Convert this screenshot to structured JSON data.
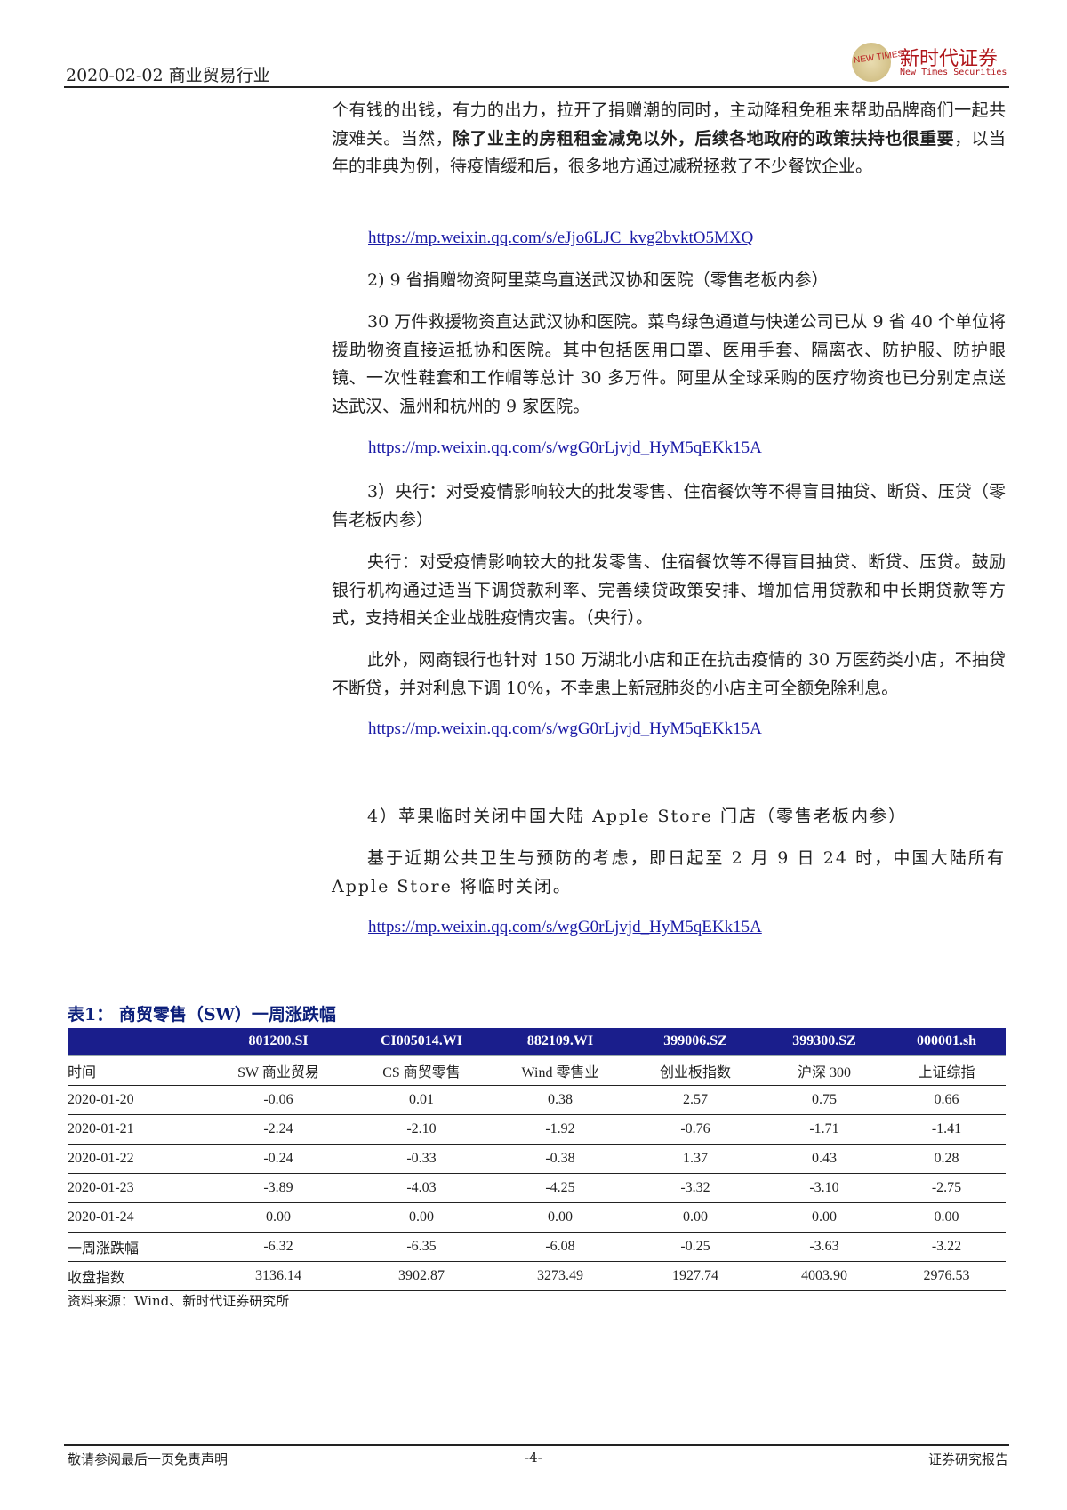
{
  "header": {
    "date_industry": "2020-02-02 商业贸易行业",
    "logo_mark": "NEW TIMES",
    "logo_cn": "新时代证券",
    "logo_en": "New Times Securities"
  },
  "body": {
    "p1_a": "个有钱的出钱，有力的出力，拉开了捐赠潮的同时，主动降租免租来帮助品牌商们一起共渡难关。当然，",
    "p1_bold": "除了业主的房租租金减免以外，后续各地政府的政策扶持也很重要",
    "p1_c": "，以当年的非典为例，待疫情缓和后，很多地方通过减税拯救了不少餐饮企业。",
    "link1": "https://mp.weixin.qq.com/s/eJjo6LJC_kvg2bvktO5MXQ",
    "h2": "2) 9 省捐赠物资阿里菜鸟直送武汉协和医院（零售老板内参）",
    "p2": "30 万件救援物资直达武汉协和医院。菜鸟绿色通道与快递公司已从 9 省 40 个单位将援助物资直接运抵协和医院。其中包括医用口罩、医用手套、隔离衣、防护服、防护眼镜、一次性鞋套和工作帽等总计 30 多万件。阿里从全球采购的医疗物资也已分别定点送达武汉、温州和杭州的 9 家医院。",
    "link2": "https://mp.weixin.qq.com/s/wgG0rLjvjd_HyM5qEKk15A",
    "h3": "3）央行：对受疫情影响较大的批发零售、住宿餐饮等不得盲目抽贷、断贷、压贷（零售老板内参）",
    "p3": "央行：对受疫情影响较大的批发零售、住宿餐饮等不得盲目抽贷、断贷、压贷。鼓励银行机构通过适当下调贷款利率、完善续贷政策安排、增加信用贷款和中长期贷款等方式，支持相关企业战胜疫情灾害。（央行）。",
    "p4": "此外，网商银行也针对 150 万湖北小店和正在抗击疫情的 30 万医药类小店，不抽贷不断贷，并对利息下调 10%，不幸患上新冠肺炎的小店主可全额免除利息。",
    "link3": "https://mp.weixin.qq.com/s/wgG0rLjvjd_HyM5qEKk15A",
    "h4": "4）苹果临时关闭中国大陆 Apple Store 门店（零售老板内参）",
    "p5": "基于近期公共卫生与预防的考虑，即日起至 2 月 9 日 24 时，中国大陆所有 Apple Store 将临时关闭。",
    "link4": "https://mp.weixin.qq.com/s/wgG0rLjvjd_HyM5qEKk15A"
  },
  "table": {
    "title": "表1：  商贸零售（SW）一周涨跌幅",
    "codes": [
      "",
      "801200.SI",
      "CI005014.WI",
      "882109.WI",
      "399006.SZ",
      "399300.SZ",
      "000001.sh"
    ],
    "names": [
      "时间",
      "SW 商业贸易",
      "CS 商贸零售",
      "Wind 零售业",
      "创业板指数",
      "沪深 300",
      "上证综指"
    ],
    "rows": [
      [
        "2020-01-20",
        "-0.06",
        "0.01",
        "0.38",
        "2.57",
        "0.75",
        "0.66"
      ],
      [
        "2020-01-21",
        "-2.24",
        "-2.10",
        "-1.92",
        "-0.76",
        "-1.71",
        "-1.41"
      ],
      [
        "2020-01-22",
        "-0.24",
        "-0.33",
        "-0.38",
        "1.37",
        "0.43",
        "0.28"
      ],
      [
        "2020-01-23",
        "-3.89",
        "-4.03",
        "-4.25",
        "-3.32",
        "-3.10",
        "-2.75"
      ],
      [
        "2020-01-24",
        "0.00",
        "0.00",
        "0.00",
        "0.00",
        "0.00",
        "0.00"
      ],
      [
        "一周涨跌幅",
        "-6.32",
        "-6.35",
        "-6.08",
        "-0.25",
        "-3.63",
        "-3.22"
      ],
      [
        "收盘指数",
        "3136.14",
        "3902.87",
        "3273.49",
        "1927.74",
        "4003.90",
        "2976.53"
      ]
    ],
    "source": "资料来源：Wind、新时代证券研究所",
    "header_color": "#1a1e8c"
  },
  "footer": {
    "left": "敬请参阅最后一页免责声明",
    "page": "-4-",
    "right": "证券研究报告"
  }
}
